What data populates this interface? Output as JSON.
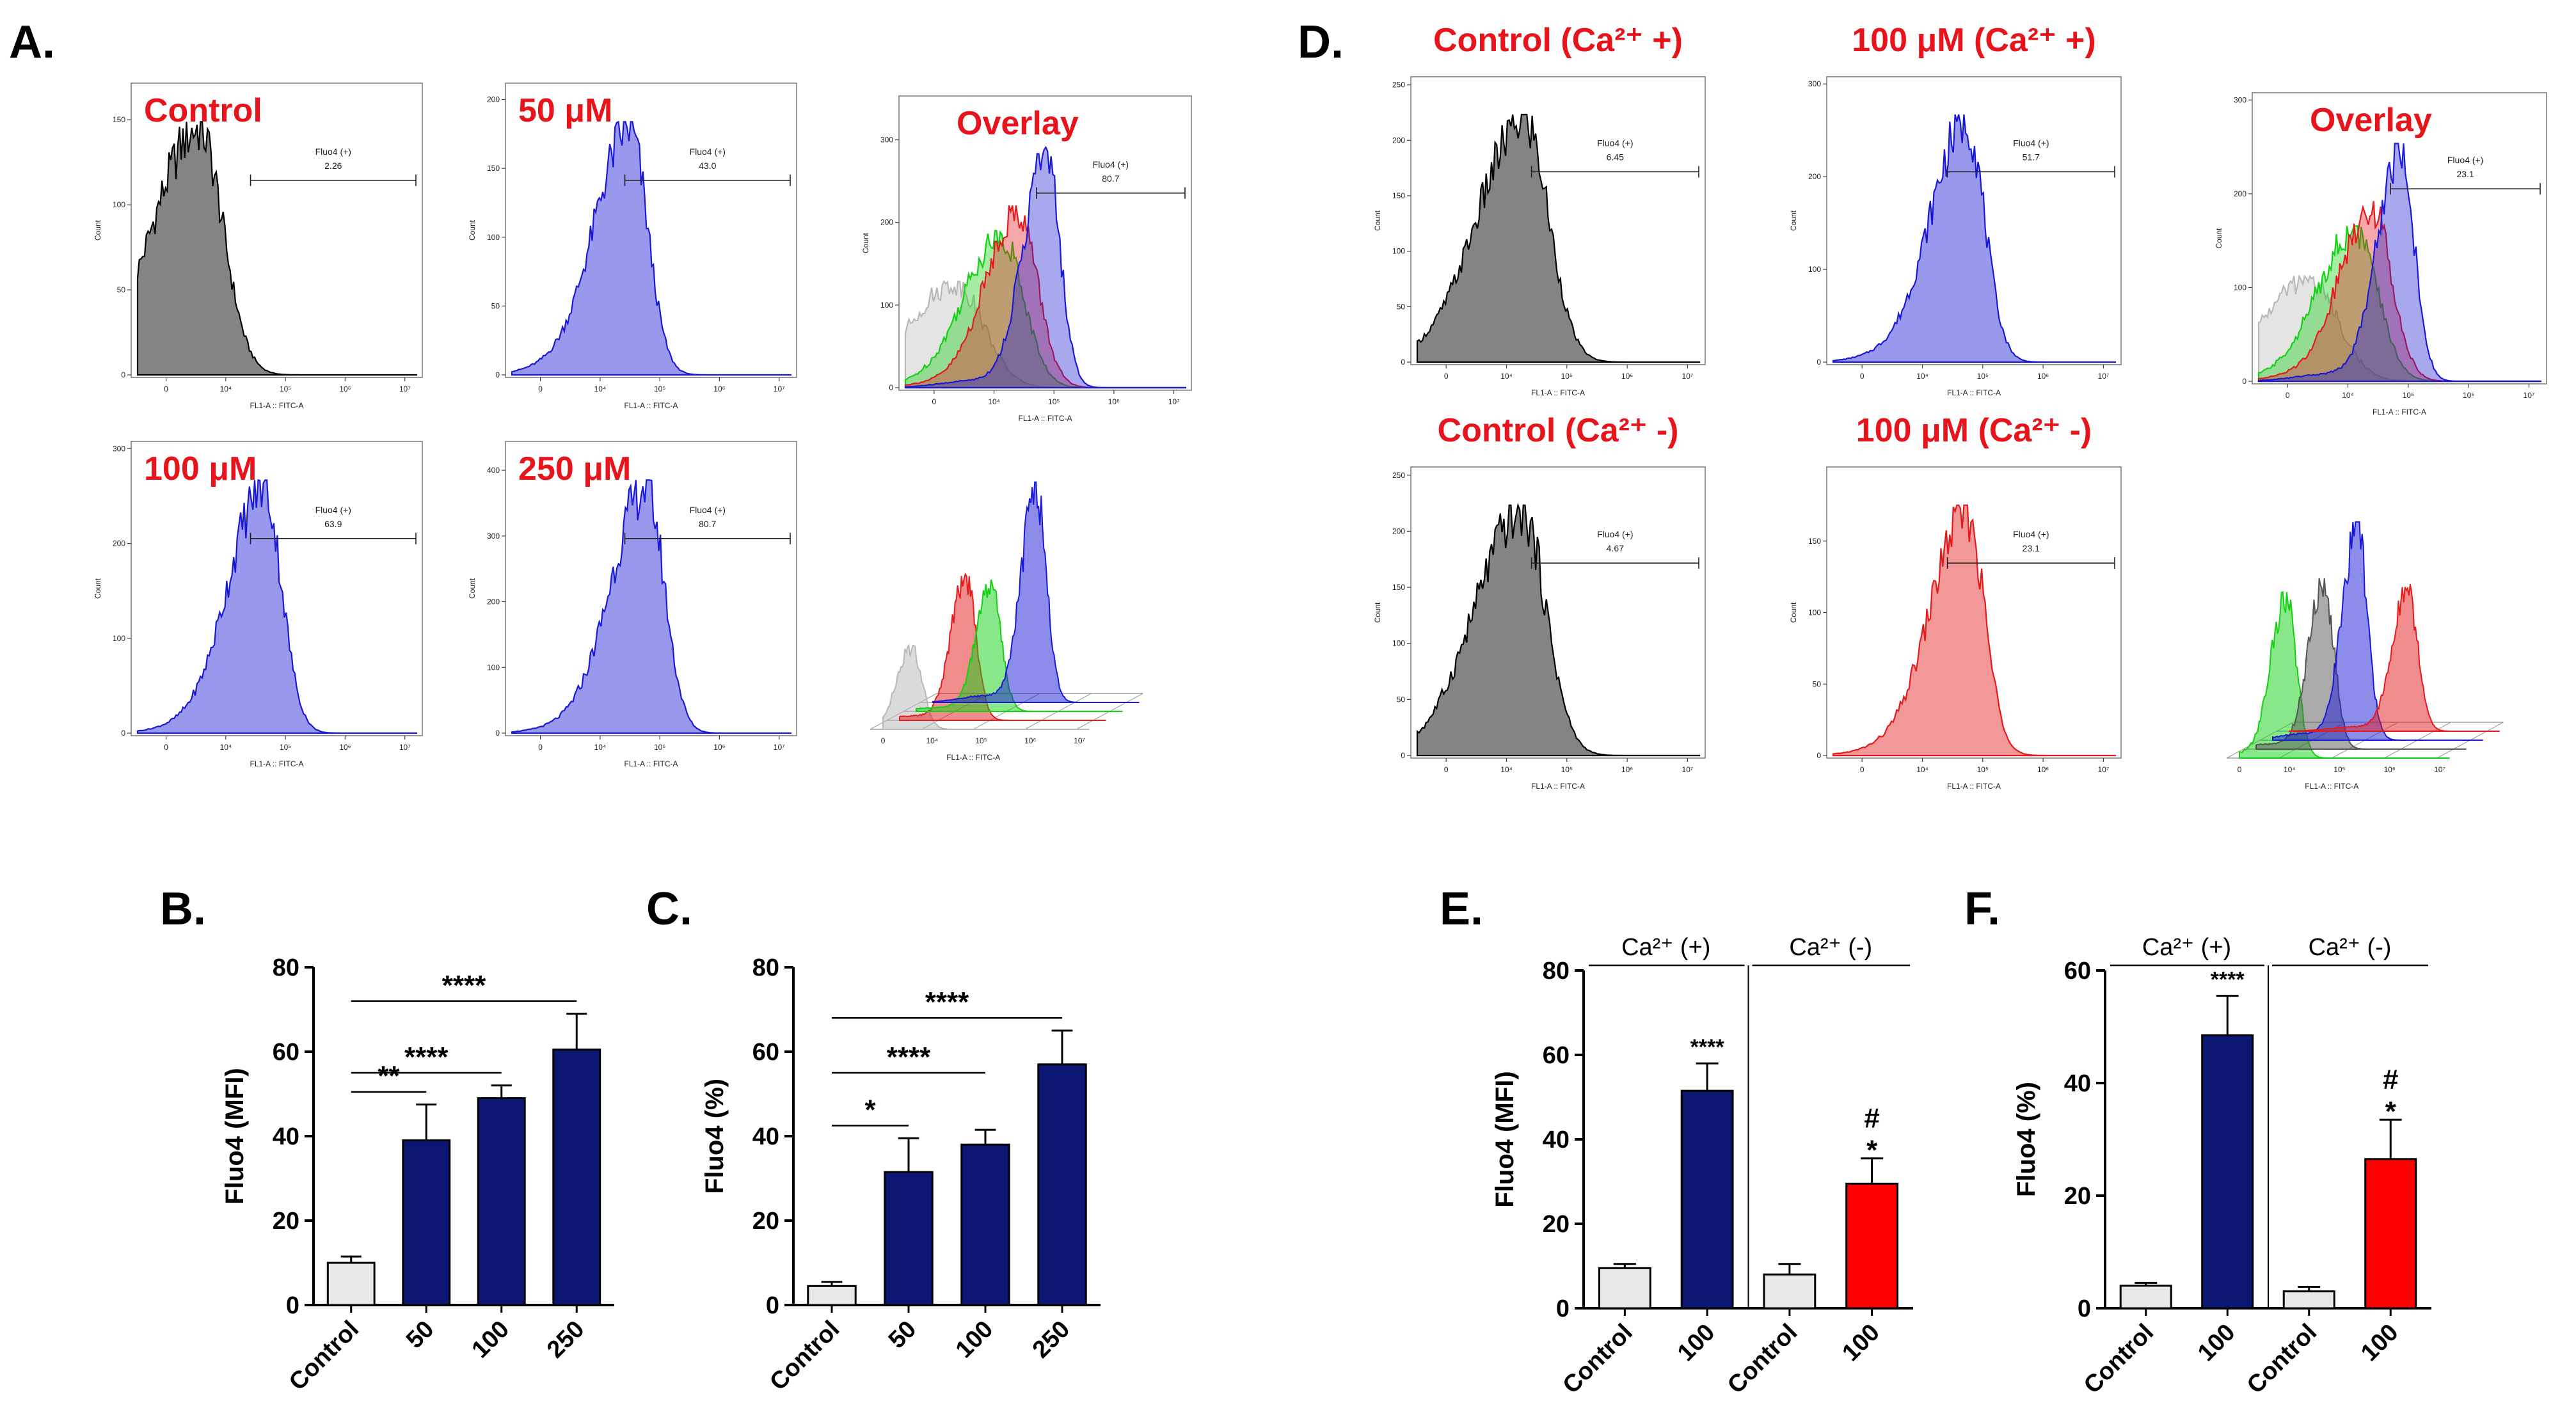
{
  "panel_labels": {
    "A": "A.",
    "B": "B.",
    "C": "C.",
    "D": "D.",
    "E": "E.",
    "F": "F."
  },
  "colors": {
    "grey": "#7d7d7d",
    "blue": "#1a1ad6",
    "red": "#e41a1c",
    "green": "#12d012",
    "navy": "#0c1774",
    "bar_red": "#ff0000",
    "bar_grey": "#e8e8e8",
    "label_red": "#e8141b"
  },
  "flow": {
    "x_axis_label": "FL1-A :: FITC-A",
    "y_axis_label": "Count",
    "gate_name": "Fluo4 (+)",
    "x_ticks": [
      "0",
      "10⁴",
      "10⁵",
      "10⁶",
      "10⁷"
    ],
    "panels": [
      {
        "id": "A1",
        "label": "Control",
        "gate_value": "2.26",
        "fill": "grey",
        "ymax": 170,
        "yticks": [
          "0",
          "50",
          "100",
          "150"
        ],
        "peak": 0.22
      },
      {
        "id": "A2",
        "label": "50 μM",
        "gate_value": "43.0",
        "fill": "blue",
        "ymax": 210,
        "yticks": [
          "0",
          "50",
          "100",
          "150",
          "200"
        ],
        "peak": 0.42
      },
      {
        "id": "A3",
        "label": "Overlay",
        "gate_value": "80.7",
        "fill": "overlay",
        "ymax": 350,
        "yticks": [
          "0",
          "100",
          "200",
          "300"
        ],
        "peak": 0.5
      },
      {
        "id": "A4",
        "label": "100 μM",
        "gate_value": "63.9",
        "fill": "blue",
        "ymax": 305,
        "yticks": [
          "0",
          "100",
          "200",
          "300"
        ],
        "peak": 0.45
      },
      {
        "id": "A5",
        "label": "250 μM",
        "gate_value": "80.7",
        "fill": "blue",
        "ymax": 440,
        "yticks": [
          "0",
          "100",
          "200",
          "300",
          "400"
        ],
        "peak": 0.48
      },
      {
        "id": "D1",
        "label": "Control (Ca²⁺ +)",
        "gate_value": "6.45",
        "fill": "grey",
        "ymax": 255,
        "yticks": [
          "0",
          "50",
          "100",
          "150",
          "200",
          "250"
        ],
        "peak": 0.38
      },
      {
        "id": "D2",
        "label": "100 μM (Ca²⁺ +)",
        "gate_value": "51.7",
        "fill": "blue",
        "ymax": 305,
        "yticks": [
          "0",
          "100",
          "200",
          "300"
        ],
        "peak": 0.47
      },
      {
        "id": "D3",
        "label": "Overlay",
        "gate_value": "23.1",
        "fill": "overlay",
        "ymax": 305,
        "yticks": [
          "0",
          "100",
          "200",
          "300"
        ],
        "peak": 0.45
      },
      {
        "id": "D4",
        "label": "Control (Ca²⁺ -)",
        "gate_value": "4.67",
        "fill": "grey",
        "ymax": 255,
        "yticks": [
          "0",
          "50",
          "100",
          "150",
          "200",
          "250"
        ],
        "peak": 0.37
      },
      {
        "id": "D5",
        "label": "100 μM (Ca²⁺ -)",
        "gate_value": "23.1",
        "fill": "red",
        "ymax": 200,
        "yticks": [
          "0",
          "50",
          "100",
          "150"
        ],
        "peak": 0.47
      }
    ],
    "stacked": [
      {
        "id": "A6",
        "x_ticks": [
          "0",
          "10⁴",
          "10⁵",
          "10⁶",
          "10⁷"
        ]
      },
      {
        "id": "D6",
        "x_ticks": [
          "0",
          "10⁴",
          "10⁵",
          "10⁶",
          "10⁷"
        ]
      }
    ]
  },
  "chart_data": [
    {
      "id": "B",
      "type": "bar",
      "ylabel": "Fluo4 (MFI)",
      "ylim": [
        0,
        80
      ],
      "yticks": [
        0,
        20,
        40,
        60,
        80
      ],
      "categories": [
        "Control",
        "50",
        "100",
        "250"
      ],
      "values": [
        10,
        39,
        49,
        60.5
      ],
      "errors": [
        1.5,
        8.5,
        3,
        8.5
      ],
      "bar_colors": [
        "bar_grey",
        "navy",
        "navy",
        "navy"
      ],
      "comparisons": [
        {
          "from": 0,
          "to": 1,
          "label": "**"
        },
        {
          "from": 0,
          "to": 2,
          "label": "****"
        },
        {
          "from": 0,
          "to": 3,
          "label": "****"
        }
      ]
    },
    {
      "id": "C",
      "type": "bar",
      "ylabel": "Fluo4 (%)",
      "ylim": [
        0,
        80
      ],
      "yticks": [
        0,
        20,
        40,
        60,
        80
      ],
      "categories": [
        "Control",
        "50",
        "100",
        "250"
      ],
      "values": [
        4.5,
        31.5,
        38,
        57
      ],
      "errors": [
        1,
        8,
        3.5,
        8
      ],
      "bar_colors": [
        "bar_grey",
        "navy",
        "navy",
        "navy"
      ],
      "comparisons": [
        {
          "from": 0,
          "to": 1,
          "label": "*"
        },
        {
          "from": 0,
          "to": 2,
          "label": "****"
        },
        {
          "from": 0,
          "to": 3,
          "label": "****"
        }
      ]
    },
    {
      "id": "E",
      "type": "bar",
      "ylabel": "Fluo4 (MFI)",
      "ylim": [
        0,
        80
      ],
      "yticks": [
        0,
        20,
        40,
        60,
        80
      ],
      "categories": [
        "Control",
        "100",
        "Control",
        "100"
      ],
      "values": [
        9.5,
        51.5,
        8,
        29.5
      ],
      "errors": [
        1,
        6.5,
        2.5,
        6
      ],
      "bar_colors": [
        "bar_grey",
        "navy",
        "bar_grey",
        "bar_red"
      ],
      "groups": [
        {
          "label": "Ca²⁺ (+)"
        },
        {
          "label": "Ca²⁺ (-)"
        }
      ],
      "annotations": [
        {
          "bar": 1,
          "lines": [
            "****"
          ]
        },
        {
          "bar": 3,
          "lines": [
            "#",
            "*"
          ]
        }
      ]
    },
    {
      "id": "F",
      "type": "bar",
      "ylabel": "Fluo4 (%)",
      "ylim": [
        0,
        60
      ],
      "yticks": [
        0,
        20,
        40,
        60
      ],
      "categories": [
        "Control",
        "100",
        "Control",
        "100"
      ],
      "values": [
        4,
        48.5,
        3,
        26.5
      ],
      "errors": [
        0.5,
        7,
        0.8,
        7
      ],
      "bar_colors": [
        "bar_grey",
        "navy",
        "bar_grey",
        "bar_red"
      ],
      "groups": [
        {
          "label": "Ca²⁺ (+)"
        },
        {
          "label": "Ca²⁺ (-)"
        }
      ],
      "annotations": [
        {
          "bar": 1,
          "lines": [
            "****"
          ]
        },
        {
          "bar": 3,
          "lines": [
            "#",
            "*"
          ]
        }
      ]
    }
  ]
}
